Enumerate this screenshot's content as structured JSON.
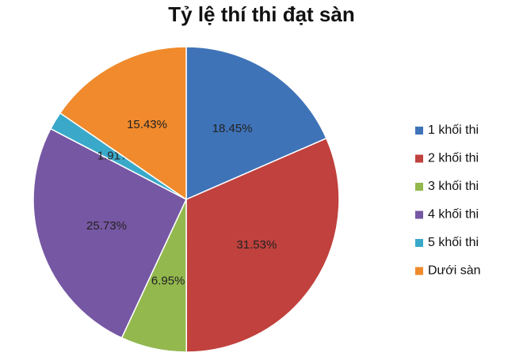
{
  "chart_data": {
    "type": "pie",
    "title": "Tỷ lệ thí thi đạt sàn",
    "categories": [
      "1 khối thi",
      "2 khối thi",
      "3 khối thi",
      "4 khối thi",
      "5 khối thi",
      "Dưới sàn"
    ],
    "values": [
      18.45,
      31.53,
      6.95,
      25.73,
      1.91,
      15.43
    ],
    "value_labels": [
      "18.45%",
      "31.53%",
      "6.95%",
      "25.73%",
      "1.91%",
      "15.43%"
    ],
    "colors": [
      "#3f73b8",
      "#c0413d",
      "#93b84e",
      "#7657a3",
      "#3aa9c9",
      "#f08a2c"
    ],
    "legend": "right"
  }
}
